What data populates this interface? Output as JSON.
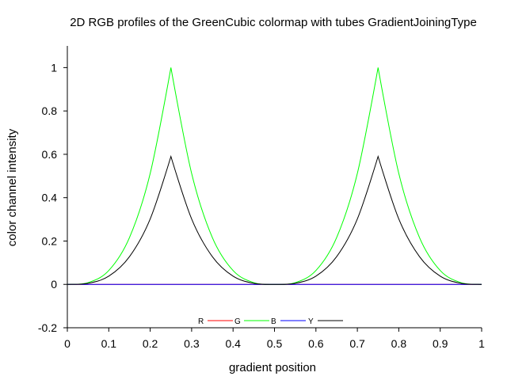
{
  "chart_data": {
    "type": "line",
    "title": "2D RGB profiles of the GreenCubic colormap with tubes GradientJoiningType",
    "xlabel": "gradient position",
    "ylabel": "color channel intensity",
    "xlim": [
      0,
      1
    ],
    "ylim": [
      -0.2,
      1.1
    ],
    "x_ticks": [
      "0",
      "0.1",
      "0.2",
      "0.3",
      "0.4",
      "0.5",
      "0.6",
      "0.7",
      "0.8",
      "0.9",
      "1"
    ],
    "y_ticks": [
      "-0.2",
      "0",
      "0.2",
      "0.4",
      "0.6",
      "0.8",
      "1"
    ],
    "grid": false,
    "legend_position": "bottom-center",
    "x": [
      0,
      0.05,
      0.1,
      0.15,
      0.2,
      0.25,
      0.3,
      0.35,
      0.4,
      0.45,
      0.5,
      0.55,
      0.6,
      0.65,
      0.7,
      0.75,
      0.8,
      0.85,
      0.9,
      0.95,
      1
    ],
    "series": [
      {
        "name": "R",
        "color": "#ff0000",
        "values": [
          0,
          0,
          0,
          0,
          0,
          0,
          0,
          0,
          0,
          0,
          0,
          0,
          0,
          0,
          0,
          0,
          0,
          0,
          0,
          0,
          0
        ]
      },
      {
        "name": "G",
        "color": "#00ff00",
        "values": [
          0,
          0.008,
          0.064,
          0.216,
          0.512,
          1.0,
          0.512,
          0.216,
          0.064,
          0.008,
          0,
          0.008,
          0.064,
          0.216,
          0.512,
          1.0,
          0.512,
          0.216,
          0.064,
          0.008,
          0
        ]
      },
      {
        "name": "B",
        "color": "#0000ff",
        "values": [
          0,
          0,
          0,
          0,
          0,
          0,
          0,
          0,
          0,
          0,
          0,
          0,
          0,
          0,
          0,
          0,
          0,
          0,
          0,
          0,
          0
        ]
      },
      {
        "name": "Y",
        "color": "#000000",
        "values": [
          0,
          0.005,
          0.038,
          0.128,
          0.302,
          0.59,
          0.302,
          0.128,
          0.038,
          0.005,
          0,
          0.005,
          0.038,
          0.128,
          0.302,
          0.59,
          0.302,
          0.128,
          0.038,
          0.005,
          0
        ]
      }
    ]
  }
}
